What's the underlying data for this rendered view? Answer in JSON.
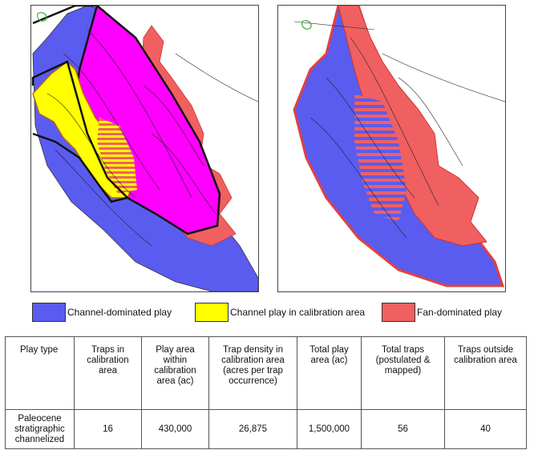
{
  "legend": {
    "items": [
      {
        "label": "Channel-dominated play",
        "color": "#5a5cf0"
      },
      {
        "label": "Channel play in calibration area",
        "color": "#ffff00"
      },
      {
        "label": "Fan-dominated play",
        "color": "#f06060"
      }
    ]
  },
  "map_colors": {
    "channel": "#5a5cf0",
    "calibration": "#ffff00",
    "fan": "#f06060",
    "magenta": "#ff00ff",
    "outline": "#111111"
  },
  "table": {
    "headers": [
      "Play type",
      "Traps in calibration area",
      "Play area within calibration area (ac)",
      "Trap density in calibration area (acres per trap occurrence)",
      "Total play area (ac)",
      "Total traps (postulated & mapped)",
      "Traps outside calibration area"
    ],
    "rows": [
      [
        "Paleocene stratigraphic channelized",
        "16",
        "430,000",
        "26,875",
        "1,500,000",
        "56",
        "40"
      ]
    ]
  }
}
